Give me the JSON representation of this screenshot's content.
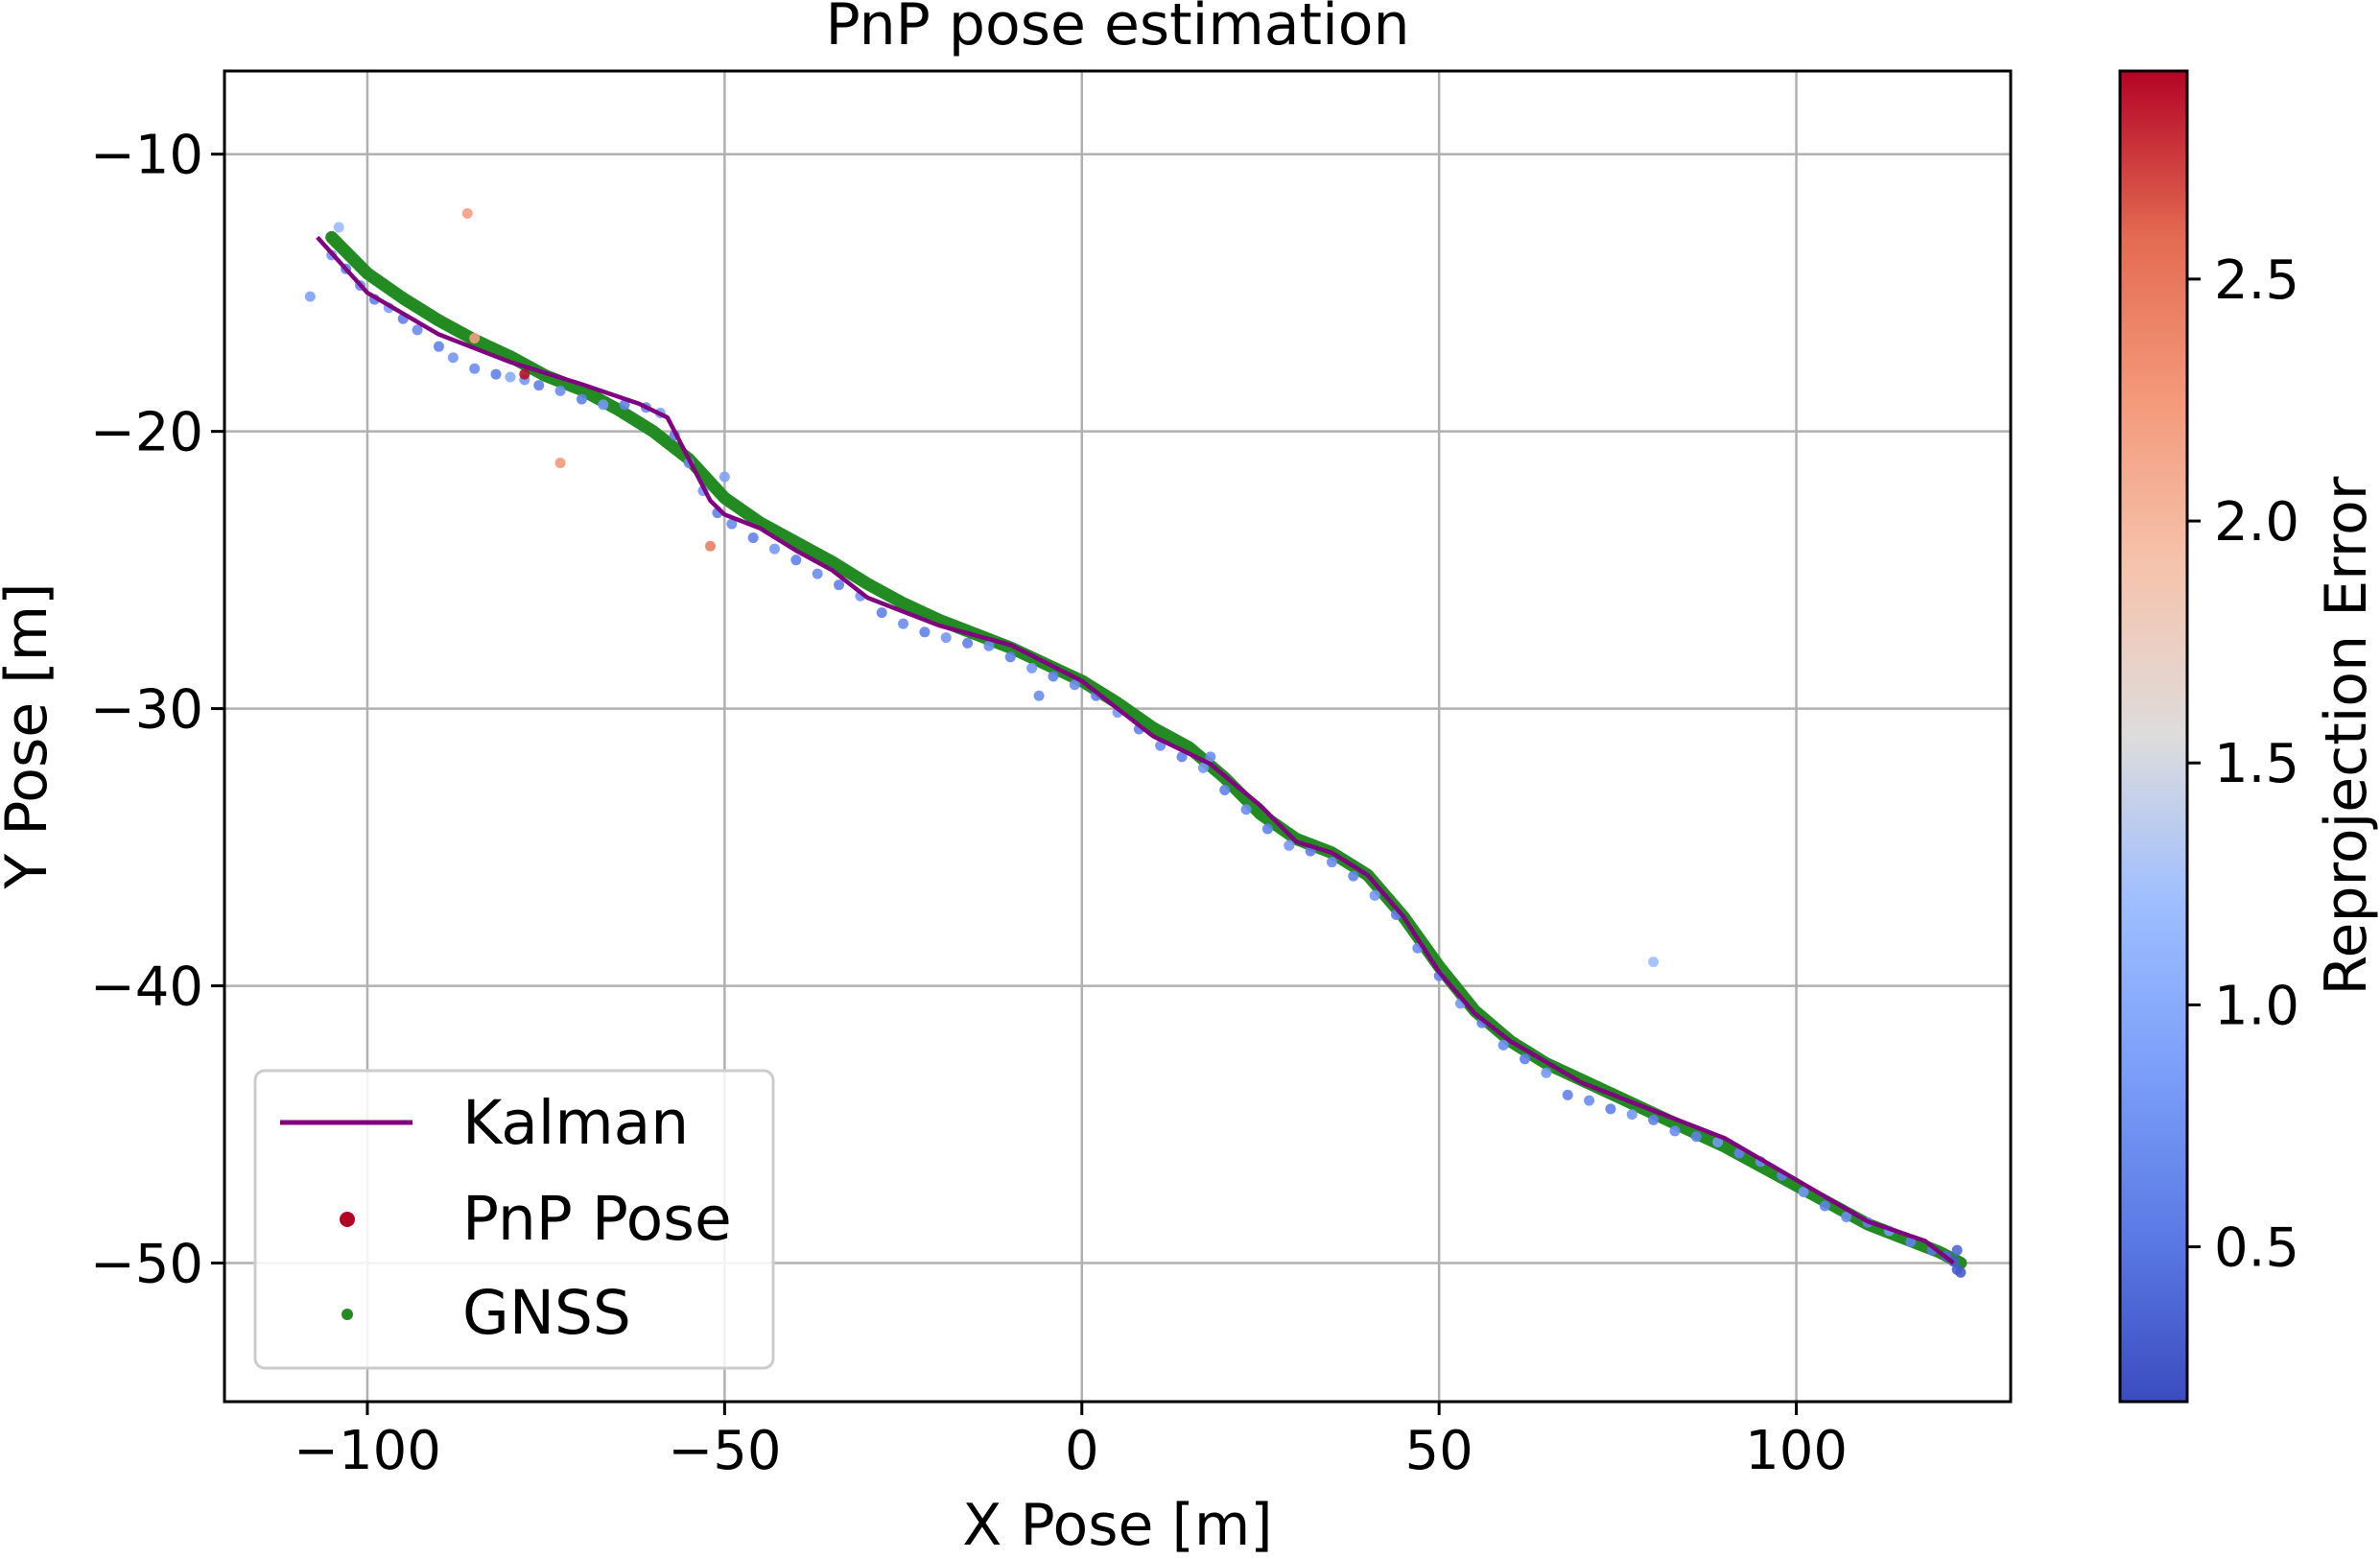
{
  "chart_data": {
    "type": "scatter",
    "title": "PnP pose estimation",
    "xlabel": "X Pose [m]",
    "ylabel": "Y Pose [m]",
    "xlim": [
      -120,
      130
    ],
    "ylim": [
      -55,
      -7
    ],
    "xticks": [
      -100,
      -50,
      0,
      50,
      100
    ],
    "yticks": [
      -10,
      -20,
      -30,
      -40,
      -50
    ],
    "xtick_labels": [
      "−100",
      "−50",
      "0",
      "50",
      "100"
    ],
    "ytick_labels": [
      "−10",
      "−20",
      "−30",
      "−40",
      "−50"
    ],
    "grid": true,
    "legend": {
      "position": "lower-left",
      "entries": [
        {
          "label": "Kalman",
          "marker": "line",
          "color": "#800080"
        },
        {
          "label": "PnP Pose",
          "marker": "dot",
          "color": "#b40426"
        },
        {
          "label": "GNSS",
          "marker": "dot",
          "color": "#228b22"
        }
      ]
    },
    "colorbar": {
      "label": "Reprojection Error",
      "colormap": "coolwarm",
      "range": [
        0.18,
        2.93
      ],
      "ticks": [
        0.5,
        1.0,
        1.5,
        2.0,
        2.5
      ],
      "tick_labels": [
        "0.5",
        "1.0",
        "1.5",
        "2.0",
        "2.5"
      ]
    },
    "series": [
      {
        "name": "Kalman",
        "type": "line",
        "color": "#800080",
        "points": [
          [
            -107,
            -13
          ],
          [
            -100,
            -15
          ],
          [
            -90,
            -16.5
          ],
          [
            -80,
            -17.5
          ],
          [
            -70,
            -18.3
          ],
          [
            -62,
            -19
          ],
          [
            -58,
            -19.5
          ],
          [
            -55,
            -21
          ],
          [
            -52,
            -22.5
          ],
          [
            -50,
            -23
          ],
          [
            -45,
            -23.5
          ],
          [
            -40,
            -24.3
          ],
          [
            -35,
            -25
          ],
          [
            -30,
            -26
          ],
          [
            -20,
            -27
          ],
          [
            -10,
            -27.7
          ],
          [
            0,
            -29
          ],
          [
            5,
            -30
          ],
          [
            10,
            -31
          ],
          [
            18,
            -32
          ],
          [
            25,
            -33.5
          ],
          [
            30,
            -34.8
          ],
          [
            35,
            -35.2
          ],
          [
            40,
            -36
          ],
          [
            45,
            -37.5
          ],
          [
            50,
            -39.5
          ],
          [
            55,
            -41
          ],
          [
            60,
            -42
          ],
          [
            70,
            -43.5
          ],
          [
            80,
            -44.5
          ],
          [
            90,
            -45.5
          ],
          [
            100,
            -47
          ],
          [
            110,
            -48.5
          ],
          [
            118,
            -49.2
          ],
          [
            122,
            -50
          ]
        ]
      },
      {
        "name": "GNSS",
        "type": "scatter",
        "color": "#228b22",
        "points": [
          [
            -105,
            -13
          ],
          [
            -100,
            -14.3
          ],
          [
            -95,
            -15.2
          ],
          [
            -90,
            -16
          ],
          [
            -85,
            -16.7
          ],
          [
            -80,
            -17.3
          ],
          [
            -75,
            -18
          ],
          [
            -70,
            -18.5
          ],
          [
            -65,
            -19.2
          ],
          [
            -60,
            -20
          ],
          [
            -55,
            -21
          ],
          [
            -50,
            -22.4
          ],
          [
            -45,
            -23.3
          ],
          [
            -40,
            -24
          ],
          [
            -35,
            -24.7
          ],
          [
            -30,
            -25.5
          ],
          [
            -25,
            -26.2
          ],
          [
            -20,
            -26.8
          ],
          [
            -15,
            -27.3
          ],
          [
            -10,
            -27.8
          ],
          [
            -5,
            -28.4
          ],
          [
            0,
            -29
          ],
          [
            5,
            -29.8
          ],
          [
            10,
            -30.7
          ],
          [
            15,
            -31.4
          ],
          [
            20,
            -32.5
          ],
          [
            25,
            -33.8
          ],
          [
            30,
            -34.7
          ],
          [
            35,
            -35.2
          ],
          [
            40,
            -36
          ],
          [
            45,
            -37.5
          ],
          [
            50,
            -39.3
          ],
          [
            55,
            -40.9
          ],
          [
            60,
            -42
          ],
          [
            65,
            -42.8
          ],
          [
            70,
            -43.4
          ],
          [
            75,
            -44
          ],
          [
            80,
            -44.6
          ],
          [
            85,
            -45.2
          ],
          [
            90,
            -45.8
          ],
          [
            95,
            -46.5
          ],
          [
            100,
            -47.2
          ],
          [
            105,
            -47.9
          ],
          [
            110,
            -48.6
          ],
          [
            115,
            -49.1
          ],
          [
            120,
            -49.6
          ],
          [
            123,
            -50
          ]
        ]
      },
      {
        "name": "PnP Pose",
        "type": "scatter",
        "color_by": "Reprojection Error",
        "points": [
          [
            -105,
            -13.5,
            0.8
          ],
          [
            -104,
            -12.5,
            1.2
          ],
          [
            -103,
            -14,
            0.6
          ],
          [
            -101,
            -14.6,
            0.7
          ],
          [
            -99,
            -15.1,
            0.6
          ],
          [
            -97,
            -15.4,
            0.9
          ],
          [
            -95,
            -15.8,
            0.6
          ],
          [
            -93,
            -16.2,
            0.7
          ],
          [
            -90,
            -16.8,
            0.6
          ],
          [
            -88,
            -17.2,
            0.8
          ],
          [
            -85,
            -17.6,
            0.7
          ],
          [
            -82,
            -17.8,
            0.6
          ],
          [
            -80,
            -17.9,
            1.0
          ],
          [
            -78,
            -18,
            0.8
          ],
          [
            -76,
            -18.2,
            0.6
          ],
          [
            -73,
            -18.4,
            0.7
          ],
          [
            -70,
            -18.7,
            0.6
          ],
          [
            -67,
            -18.9,
            0.8
          ],
          [
            -64,
            -18.9,
            0.6
          ],
          [
            -61,
            -19,
            0.7
          ],
          [
            -59,
            -19.2,
            0.9
          ],
          [
            -57,
            -20,
            0.6
          ],
          [
            -55,
            -21,
            0.7
          ],
          [
            -53,
            -22,
            0.8
          ],
          [
            -51,
            -22.8,
            0.6
          ],
          [
            -49,
            -23.2,
            0.7
          ],
          [
            -46,
            -23.7,
            0.6
          ],
          [
            -43,
            -24.1,
            0.8
          ],
          [
            -40,
            -24.5,
            0.6
          ],
          [
            -37,
            -25,
            0.7
          ],
          [
            -34,
            -25.4,
            0.6
          ],
          [
            -31,
            -25.8,
            0.8
          ],
          [
            -28,
            -26.4,
            0.6
          ],
          [
            -25,
            -26.8,
            0.7
          ],
          [
            -22,
            -27.1,
            0.6
          ],
          [
            -19,
            -27.3,
            0.8
          ],
          [
            -16,
            -27.5,
            0.6
          ],
          [
            -13,
            -27.6,
            0.7
          ],
          [
            -10,
            -28,
            0.6
          ],
          [
            -7,
            -28.4,
            0.8
          ],
          [
            -4,
            -28.7,
            0.6
          ],
          [
            -1,
            -29,
            0.7
          ],
          [
            2,
            -29.4,
            0.6
          ],
          [
            5,
            -30,
            0.8
          ],
          [
            8,
            -30.6,
            0.6
          ],
          [
            11,
            -31.2,
            0.7
          ],
          [
            14,
            -31.6,
            0.6
          ],
          [
            17,
            -32,
            0.8
          ],
          [
            20,
            -32.8,
            0.6
          ],
          [
            23,
            -33.5,
            0.7
          ],
          [
            26,
            -34.2,
            0.6
          ],
          [
            29,
            -34.8,
            0.8
          ],
          [
            32,
            -35,
            0.6
          ],
          [
            35,
            -35.4,
            0.7
          ],
          [
            38,
            -35.9,
            0.6
          ],
          [
            41,
            -36.6,
            0.8
          ],
          [
            44,
            -37.3,
            0.6
          ],
          [
            47,
            -38.5,
            0.7
          ],
          [
            50,
            -39.5,
            0.6
          ],
          [
            53,
            -40.5,
            0.8
          ],
          [
            56,
            -41.2,
            0.6
          ],
          [
            59,
            -42,
            0.7
          ],
          [
            62,
            -42.5,
            0.6
          ],
          [
            65,
            -43,
            0.8
          ],
          [
            68,
            -43.8,
            0.6
          ],
          [
            71,
            -44,
            0.7
          ],
          [
            74,
            -44.3,
            0.6
          ],
          [
            77,
            -44.5,
            0.8
          ],
          [
            80,
            -44.7,
            0.6
          ],
          [
            83,
            -45.1,
            0.7
          ],
          [
            86,
            -45.3,
            0.6
          ],
          [
            89,
            -45.5,
            0.8
          ],
          [
            92,
            -45.9,
            0.6
          ],
          [
            95,
            -46.2,
            0.7
          ],
          [
            98,
            -46.7,
            0.6
          ],
          [
            101,
            -47.3,
            0.8
          ],
          [
            104,
            -47.8,
            0.6
          ],
          [
            107,
            -48.2,
            0.7
          ],
          [
            110,
            -48.4,
            0.6
          ],
          [
            113,
            -48.7,
            0.8
          ],
          [
            116,
            -49.1,
            0.6
          ],
          [
            119,
            -49.4,
            0.5
          ],
          [
            121,
            -49.6,
            0.4
          ],
          [
            122,
            -49.8,
            0.3
          ],
          [
            122.5,
            -50.1,
            0.3
          ],
          [
            122.5,
            -49.4,
            0.4
          ],
          [
            123,
            -50.2,
            0.3
          ],
          [
            -108,
            -15,
            0.9
          ],
          [
            -73,
            -21,
            2.25
          ],
          [
            -86,
            -12,
            2.2
          ],
          [
            -52,
            -24,
            2.45
          ],
          [
            -85,
            -16.5,
            2.2
          ],
          [
            -78,
            -17.8,
            2.9
          ],
          [
            80,
            -39,
            1.2
          ],
          [
            -6,
            -29.4,
            0.7
          ],
          [
            -50,
            -21.5,
            0.9
          ],
          [
            18,
            -31.6,
            0.7
          ]
        ]
      }
    ]
  }
}
